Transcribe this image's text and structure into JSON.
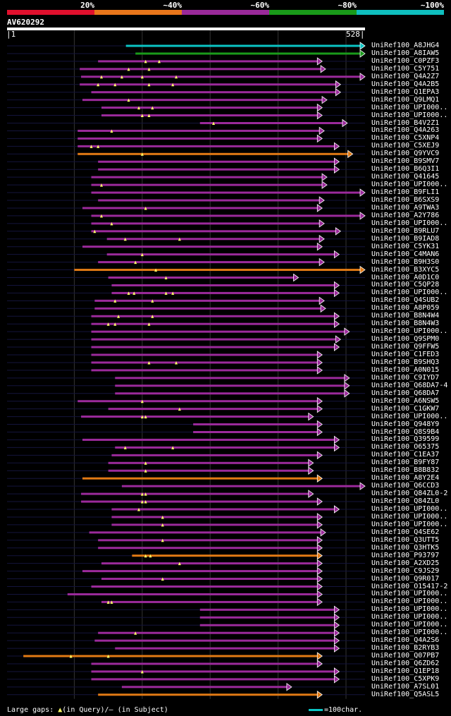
{
  "legend": {
    "bins": [
      {
        "label": "20%",
        "color": "#e0102d"
      },
      {
        "label": "~40%",
        "color": "#e8761b"
      },
      {
        "label": "~60%",
        "color": "#9a2a9a"
      },
      {
        "label": "~80%",
        "color": "#199a19"
      },
      {
        "label": "~100%",
        "color": "#0fbfbf"
      }
    ]
  },
  "query": {
    "name": "AV620292",
    "start": "1",
    "end": "528"
  },
  "footer": {
    "gap_prefix": "Large gaps: ",
    "gap_query_symbol": "▲",
    "gap_query_text": "(in Query)/",
    "gap_subject_symbol": "–",
    "gap_subject_text": " (in Subject)",
    "scale_text": "=100char."
  },
  "chart_data": {
    "type": "alignment",
    "title": "AV620292",
    "x_range": [
      1,
      528
    ],
    "grid_ticks": [
      100,
      200,
      300,
      400,
      500
    ],
    "hits": [
      {
        "label": "UniRef100_A8JHG4",
        "start": 176,
        "end": 528,
        "color": "cyan",
        "gaps": []
      },
      {
        "label": "UniRef100_A8IAW5",
        "start": 190,
        "end": 528,
        "color": "green",
        "gaps": []
      },
      {
        "label": "UniRef100_C0PZF3",
        "start": 135,
        "end": 465,
        "color": "purple",
        "gaps": [
          205,
          225
        ]
      },
      {
        "label": "UniRef100_C5Y751",
        "start": 108,
        "end": 470,
        "color": "purple",
        "gaps": [
          180,
          210
        ]
      },
      {
        "label": "UniRef100_Q4A2Z7",
        "start": 110,
        "end": 528,
        "color": "purple",
        "gaps": [
          140,
          170,
          200,
          250
        ]
      },
      {
        "label": "UniRef100_Q4A2B5",
        "start": 108,
        "end": 492,
        "color": "purple",
        "gaps": [
          135,
          160,
          210,
          245
        ]
      },
      {
        "label": "UniRef100_Q1EPA3",
        "start": 125,
        "end": 492,
        "color": "purple",
        "gaps": []
      },
      {
        "label": "UniRef100_Q9LMQ1",
        "start": 112,
        "end": 472,
        "color": "purple",
        "gaps": [
          180
        ]
      },
      {
        "label": "UniRef100_UPI000..",
        "start": 140,
        "end": 465,
        "color": "purple",
        "gaps": [
          195,
          215
        ]
      },
      {
        "label": "UniRef100_UPI000..",
        "start": 140,
        "end": 465,
        "color": "purple",
        "gaps": [
          200,
          210
        ]
      },
      {
        "label": "UniRef100_B4V2Z1",
        "start": 285,
        "end": 502,
        "color": "purple",
        "gaps": [
          305
        ]
      },
      {
        "label": "UniRef100_Q4A263",
        "start": 105,
        "end": 468,
        "color": "purple",
        "gaps": [
          155
        ]
      },
      {
        "label": "UniRef100_C5XNP4",
        "start": 105,
        "end": 465,
        "color": "purple",
        "gaps": []
      },
      {
        "label": "UniRef100_C5XEJ9",
        "start": 105,
        "end": 490,
        "color": "purple",
        "gaps": [
          125,
          135
        ]
      },
      {
        "label": "UniRef100_Q9YVC9",
        "start": 105,
        "end": 510,
        "color": "orange",
        "gaps": [
          200
        ]
      },
      {
        "label": "UniRef100_B9SMV7",
        "start": 135,
        "end": 490,
        "color": "purple",
        "gaps": []
      },
      {
        "label": "UniRef100_B6Q3I1",
        "start": 135,
        "end": 490,
        "color": "purple",
        "gaps": []
      },
      {
        "label": "UniRef100_Q41645",
        "start": 125,
        "end": 472,
        "color": "purple",
        "gaps": []
      },
      {
        "label": "UniRef100_UPI000..",
        "start": 125,
        "end": 472,
        "color": "purple",
        "gaps": [
          140
        ]
      },
      {
        "label": "UniRef100_B9FLI1",
        "start": 125,
        "end": 528,
        "color": "purple",
        "gaps": []
      },
      {
        "label": "UniRef100_B6SXS9",
        "start": 135,
        "end": 468,
        "color": "purple",
        "gaps": []
      },
      {
        "label": "UniRef100_A9TWA3",
        "start": 112,
        "end": 465,
        "color": "purple",
        "gaps": [
          205
        ]
      },
      {
        "label": "UniRef100_A2Y786",
        "start": 125,
        "end": 528,
        "color": "purple",
        "gaps": [
          140
        ]
      },
      {
        "label": "UniRef100_UPI000..",
        "start": 125,
        "end": 468,
        "color": "purple",
        "gaps": [
          155
        ]
      },
      {
        "label": "UniRef100_B9RLU7",
        "start": 125,
        "end": 492,
        "color": "purple",
        "gaps": [
          130
        ]
      },
      {
        "label": "UniRef100_B9IAD8",
        "start": 148,
        "end": 468,
        "color": "purple",
        "gaps": [
          175,
          255
        ]
      },
      {
        "label": "UniRef100_C5YK31",
        "start": 112,
        "end": 465,
        "color": "purple",
        "gaps": []
      },
      {
        "label": "UniRef100_C4MAN6",
        "start": 148,
        "end": 490,
        "color": "purple",
        "gaps": [
          200
        ]
      },
      {
        "label": "UniRef100_B9H3S0",
        "start": 135,
        "end": 468,
        "color": "purple",
        "gaps": [
          190
        ]
      },
      {
        "label": "UniRef100_B3XYC5",
        "start": 100,
        "end": 528,
        "color": "orange",
        "gaps": [
          220
        ]
      },
      {
        "label": "UniRef100_A0D1C0",
        "start": 150,
        "end": 430,
        "color": "purple",
        "gaps": [
          235
        ]
      },
      {
        "label": "UniRef100_C5QP28",
        "start": 155,
        "end": 490,
        "color": "purple",
        "gaps": []
      },
      {
        "label": "UniRef100_UPI000..",
        "start": 155,
        "end": 490,
        "color": "purple",
        "gaps": [
          180,
          188,
          235,
          245
        ]
      },
      {
        "label": "UniRef100_Q4SUB2",
        "start": 130,
        "end": 468,
        "color": "purple",
        "gaps": [
          160,
          215
        ]
      },
      {
        "label": "UniRef100_A8P059",
        "start": 130,
        "end": 470,
        "color": "purple",
        "gaps": []
      },
      {
        "label": "UniRef100_B8N4W4",
        "start": 125,
        "end": 490,
        "color": "purple",
        "gaps": [
          165,
          215
        ]
      },
      {
        "label": "UniRef100_B8N4W3",
        "start": 125,
        "end": 490,
        "color": "purple",
        "gaps": [
          150,
          160,
          210
        ]
      },
      {
        "label": "UniRef100_UPI000..",
        "start": 125,
        "end": 505,
        "color": "purple",
        "gaps": []
      },
      {
        "label": "UniRef100_Q9SPM0",
        "start": 125,
        "end": 492,
        "color": "purple",
        "gaps": []
      },
      {
        "label": "UniRef100_Q9FFW5",
        "start": 125,
        "end": 490,
        "color": "purple",
        "gaps": []
      },
      {
        "label": "UniRef100_C1FED3",
        "start": 125,
        "end": 465,
        "color": "purple",
        "gaps": []
      },
      {
        "label": "UniRef100_B9SHQ3",
        "start": 125,
        "end": 465,
        "color": "purple",
        "gaps": [
          210,
          250
        ]
      },
      {
        "label": "UniRef100_A0N015",
        "start": 125,
        "end": 465,
        "color": "purple",
        "gaps": []
      },
      {
        "label": "UniRef100_C9IYD7",
        "start": 160,
        "end": 505,
        "color": "purple",
        "gaps": []
      },
      {
        "label": "UniRef100_Q68DA7-4",
        "start": 160,
        "end": 505,
        "color": "purple",
        "gaps": []
      },
      {
        "label": "UniRef100_Q68DA7",
        "start": 160,
        "end": 505,
        "color": "purple",
        "gaps": []
      },
      {
        "label": "UniRef100_A6NSW5",
        "start": 105,
        "end": 465,
        "color": "purple",
        "gaps": [
          200
        ]
      },
      {
        "label": "UniRef100_C1GKW7",
        "start": 150,
        "end": 465,
        "color": "purple",
        "gaps": [
          255
        ]
      },
      {
        "label": "UniRef100_UPI000..",
        "start": 110,
        "end": 452,
        "color": "purple",
        "gaps": [
          200,
          205
        ]
      },
      {
        "label": "UniRef100_Q948Y9",
        "start": 275,
        "end": 465,
        "color": "purple",
        "gaps": []
      },
      {
        "label": "UniRef100_Q8S9B4",
        "start": 275,
        "end": 465,
        "color": "purple",
        "gaps": []
      },
      {
        "label": "UniRef100_Q39599",
        "start": 112,
        "end": 490,
        "color": "purple",
        "gaps": []
      },
      {
        "label": "UniRef100_O65375",
        "start": 160,
        "end": 490,
        "color": "purple",
        "gaps": [
          175,
          245
        ]
      },
      {
        "label": "UniRef100_C1EA37",
        "start": 155,
        "end": 465,
        "color": "purple",
        "gaps": []
      },
      {
        "label": "UniRef100_B9FY87",
        "start": 150,
        "end": 452,
        "color": "purple",
        "gaps": [
          205
        ]
      },
      {
        "label": "UniRef100_B8B832",
        "start": 150,
        "end": 452,
        "color": "purple",
        "gaps": [
          205
        ]
      },
      {
        "label": "UniRef100_A8Y2E4",
        "start": 112,
        "end": 465,
        "color": "orange",
        "gaps": []
      },
      {
        "label": "UniRef100_Q6CCD3",
        "start": 170,
        "end": 528,
        "color": "purple",
        "gaps": []
      },
      {
        "label": "UniRef100_Q84ZL0-2",
        "start": 110,
        "end": 452,
        "color": "purple",
        "gaps": [
          200,
          205
        ]
      },
      {
        "label": "UniRef100_Q84ZL0",
        "start": 110,
        "end": 465,
        "color": "purple",
        "gaps": [
          200,
          205
        ]
      },
      {
        "label": "UniRef100_UPI000..",
        "start": 155,
        "end": 490,
        "color": "purple",
        "gaps": [
          195
        ]
      },
      {
        "label": "UniRef100_UPI000..",
        "start": 155,
        "end": 465,
        "color": "purple",
        "gaps": [
          230
        ]
      },
      {
        "label": "UniRef100_UPI000..",
        "start": 155,
        "end": 465,
        "color": "purple",
        "gaps": [
          230
        ]
      },
      {
        "label": "UniRef100_Q4SE62",
        "start": 122,
        "end": 470,
        "color": "purple",
        "gaps": []
      },
      {
        "label": "UniRef100_Q3UTT5",
        "start": 135,
        "end": 465,
        "color": "purple",
        "gaps": [
          230
        ]
      },
      {
        "label": "UniRef100_Q3HTK5",
        "start": 135,
        "end": 465,
        "color": "purple",
        "gaps": []
      },
      {
        "label": "UniRef100_P93797",
        "start": 185,
        "end": 465,
        "color": "orange",
        "gaps": [
          205,
          212
        ]
      },
      {
        "label": "UniRef100_A2XD25",
        "start": 140,
        "end": 465,
        "color": "purple",
        "gaps": [
          255
        ]
      },
      {
        "label": "UniRef100_C9JS29",
        "start": 112,
        "end": 465,
        "color": "purple",
        "gaps": []
      },
      {
        "label": "UniRef100_Q9R017",
        "start": 140,
        "end": 465,
        "color": "purple",
        "gaps": [
          230
        ]
      },
      {
        "label": "UniRef100_O15417-2",
        "start": 125,
        "end": 465,
        "color": "purple",
        "gaps": []
      },
      {
        "label": "UniRef100_UPI000..",
        "start": 90,
        "end": 465,
        "color": "purple",
        "gaps": []
      },
      {
        "label": "UniRef100_UPI000..",
        "start": 140,
        "end": 465,
        "color": "purple",
        "gaps": [
          150,
          155
        ]
      },
      {
        "label": "UniRef100_UPI000..",
        "start": 285,
        "end": 490,
        "color": "purple",
        "gaps": []
      },
      {
        "label": "UniRef100_UPI000..",
        "start": 285,
        "end": 490,
        "color": "purple",
        "gaps": []
      },
      {
        "label": "UniRef100_UPI000..",
        "start": 285,
        "end": 490,
        "color": "purple",
        "gaps": []
      },
      {
        "label": "UniRef100_UPI000..",
        "start": 135,
        "end": 490,
        "color": "purple",
        "gaps": [
          190
        ]
      },
      {
        "label": "UniRef100_Q4A2S6",
        "start": 130,
        "end": 490,
        "color": "purple",
        "gaps": []
      },
      {
        "label": "UniRef100_B2RYB3",
        "start": 160,
        "end": 490,
        "color": "purple",
        "gaps": []
      },
      {
        "label": "UniRef100_Q07PB7",
        "start": 25,
        "end": 465,
        "color": "orange",
        "gaps": [
          95,
          150
        ]
      },
      {
        "label": "UniRef100_Q6ZD62",
        "start": 125,
        "end": 465,
        "color": "purple",
        "gaps": []
      },
      {
        "label": "UniRef100_Q1EP18",
        "start": 125,
        "end": 490,
        "color": "purple",
        "gaps": [
          200
        ]
      },
      {
        "label": "UniRef100_C5XPK9",
        "start": 125,
        "end": 490,
        "color": "purple",
        "gaps": []
      },
      {
        "label": "UniRef100_A7SL01",
        "start": 170,
        "end": 420,
        "color": "purple",
        "gaps": []
      },
      {
        "label": "UniRef100_Q5ASL5",
        "start": 135,
        "end": 465,
        "color": "orange",
        "gaps": []
      }
    ]
  }
}
